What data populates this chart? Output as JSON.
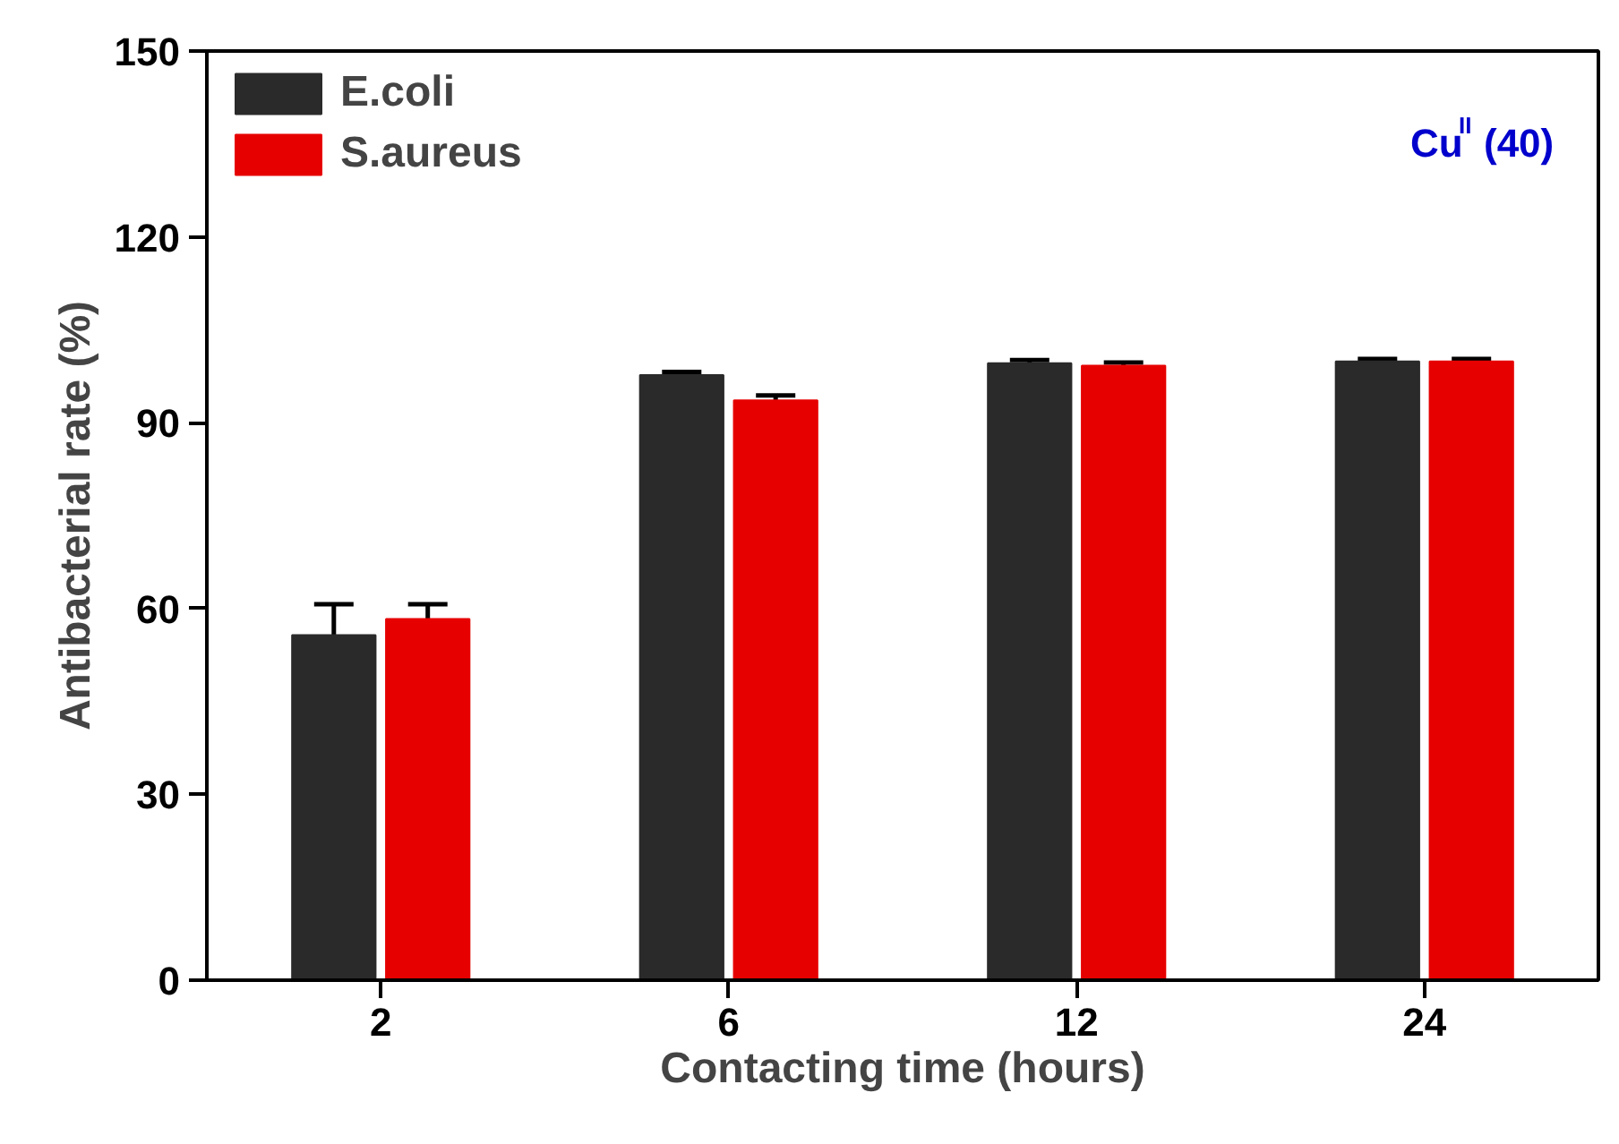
{
  "chart_data": {
    "type": "bar",
    "xlabel": "Contacting time (hours)",
    "ylabel": "Antibacterial rate (%)",
    "categories": [
      "2",
      "6",
      "12",
      "24"
    ],
    "series": [
      {
        "name": "E.coli",
        "color": "#2a2a2a",
        "values": [
          55.7,
          97.7,
          99.6,
          99.9
        ],
        "errors": [
          5.0,
          0.5,
          0.5,
          0.4
        ]
      },
      {
        "name": "S.aureus",
        "color": "#e60000",
        "values": [
          58.3,
          93.6,
          99.2,
          99.9
        ],
        "errors": [
          2.4,
          0.8,
          0.5,
          0.4
        ]
      }
    ],
    "ylim": [
      0,
      150
    ],
    "yticks": [
      0,
      30,
      60,
      90,
      120,
      150
    ],
    "grid": false,
    "legend": "top left",
    "annotations": [
      "Cu$^{II}$(40)"
    ]
  }
}
